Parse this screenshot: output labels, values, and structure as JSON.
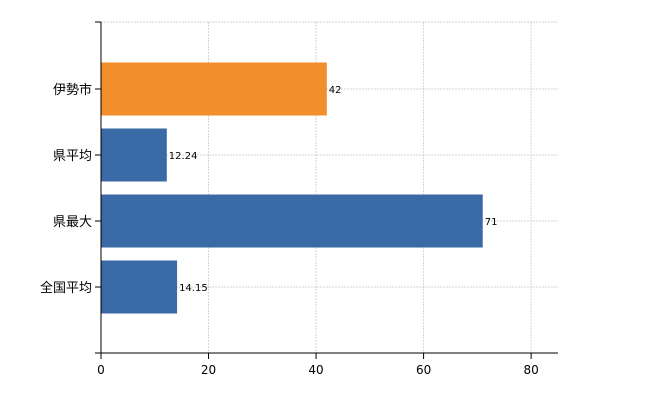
{
  "chart_data": {
    "type": "bar",
    "orientation": "horizontal",
    "categories": [
      "伊勢市",
      "県平均",
      "県最大",
      "全国平均"
    ],
    "values": [
      42,
      12.24,
      71,
      14.15
    ],
    "value_labels": [
      "42",
      "12.24",
      "71",
      "14.15"
    ],
    "bar_colors": [
      "#f28e2b",
      "#3a6aa6",
      "#3a6aa6",
      "#3a6aa6"
    ],
    "xlim": [
      0,
      85
    ],
    "x_ticks": [
      0,
      20,
      40,
      60,
      80
    ],
    "x_tick_labels": [
      "0",
      "20",
      "40",
      "60",
      "80"
    ],
    "grid": true,
    "title": "",
    "xlabel": "",
    "ylabel": ""
  }
}
